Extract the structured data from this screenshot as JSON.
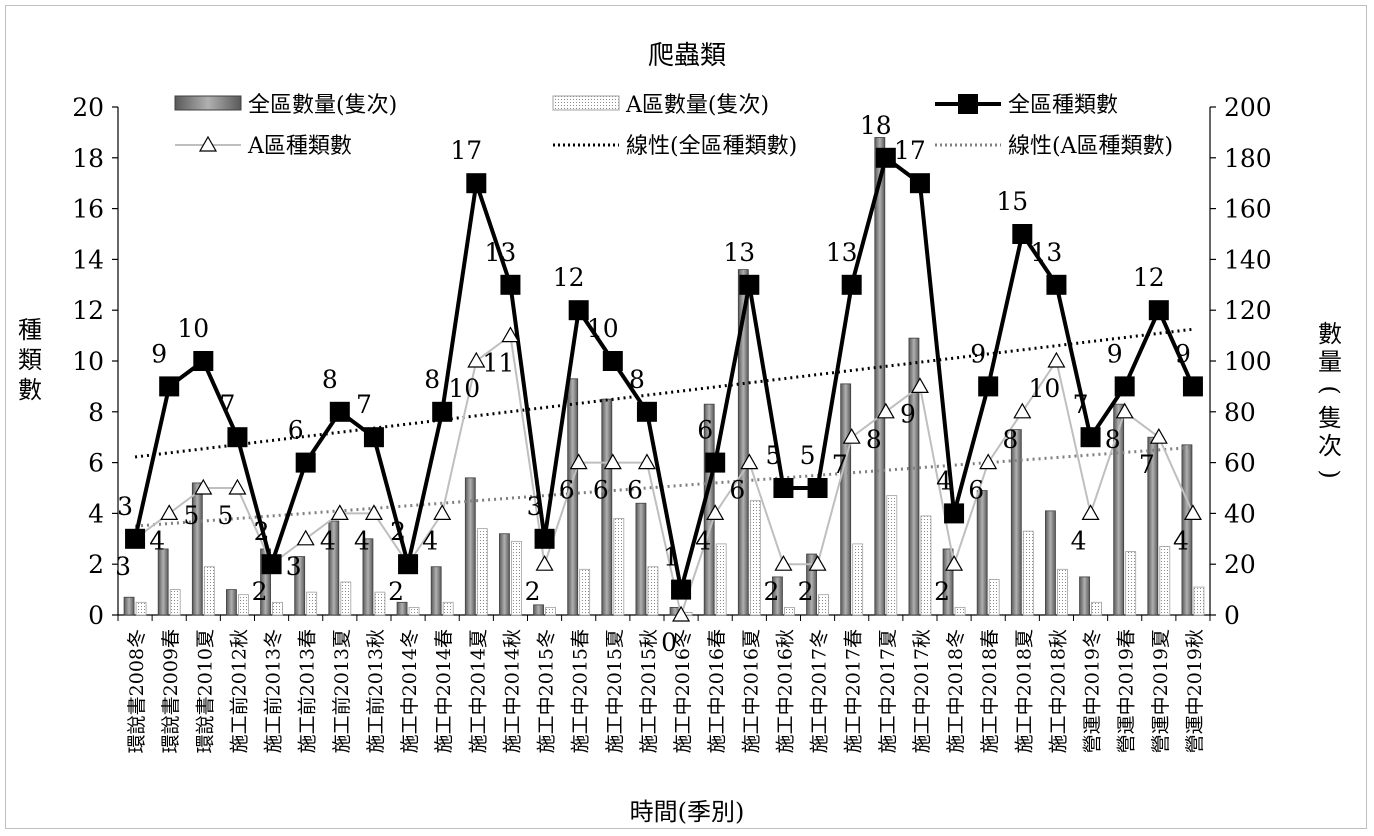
{
  "chart_data": {
    "type": "bar",
    "title": "爬蟲類",
    "xlabel": "時間(季別)",
    "ylabel_left": "種類數",
    "ylabel_right": "數量(隻次)",
    "ylim_left": [
      0,
      20
    ],
    "ylim_right": [
      0,
      200
    ],
    "left_ticks": [
      0,
      2,
      4,
      6,
      8,
      10,
      12,
      14,
      16,
      18,
      20
    ],
    "right_ticks": [
      0,
      20,
      40,
      60,
      80,
      100,
      120,
      140,
      160,
      180,
      200
    ],
    "grid": false,
    "legend_position": "top",
    "categories": [
      "環說書2008冬",
      "環說書2009春",
      "環說書2010夏",
      "施工前2012秋",
      "施工前2013冬",
      "施工前2013春",
      "施工前2013夏",
      "施工前2013秋",
      "施工中2014冬",
      "施工中2014春",
      "施工中2014夏",
      "施工中2014秋",
      "施工中2015冬",
      "施工中2015春",
      "施工中2015夏",
      "施工中2015秋",
      "施工中2016冬",
      "施工中2016春",
      "施工中2016夏",
      "施工中2016秋",
      "施工中2017冬",
      "施工中2017春",
      "施工中2017夏",
      "施工中2017秋",
      "施工中2018冬",
      "施工中2018春",
      "施工中2018夏",
      "施工中2018秋",
      "營運中2019冬",
      "營運中2019春",
      "營運中2019夏",
      "營運中2019秋"
    ],
    "series": [
      {
        "name": "全區數量(隻次)",
        "kind": "bar",
        "axis": "right",
        "color": "#808080",
        "values": [
          7,
          26,
          52,
          10,
          26,
          23,
          37,
          30,
          5,
          19,
          54,
          32,
          4,
          93,
          85,
          44,
          3,
          83,
          136,
          15,
          24,
          91,
          188,
          109,
          26,
          49,
          73,
          41,
          15,
          83,
          70,
          67
        ]
      },
      {
        "name": "A區數量(隻次)",
        "kind": "bar",
        "axis": "right",
        "color": "#ffffff",
        "values": [
          5,
          10,
          19,
          8,
          5,
          9,
          13,
          9,
          3,
          5,
          34,
          29,
          3,
          18,
          38,
          19,
          1,
          28,
          45,
          3,
          8,
          28,
          47,
          39,
          3,
          14,
          33,
          18,
          5,
          25,
          27,
          11
        ]
      },
      {
        "name": "全區種類數",
        "kind": "line",
        "axis": "left",
        "color": "#000000",
        "values": [
          3,
          9,
          10,
          7,
          2,
          6,
          8,
          7,
          2,
          8,
          17,
          13,
          3,
          12,
          10,
          8,
          1,
          6,
          13,
          5,
          5,
          13,
          18,
          17,
          4,
          9,
          15,
          13,
          7,
          9,
          12,
          9
        ]
      },
      {
        "name": "A區種類數",
        "kind": "line",
        "axis": "left",
        "color": "#bfbfbf",
        "values": [
          3,
          4,
          5,
          5,
          2,
          3,
          4,
          4,
          2,
          4,
          10,
          11,
          2,
          6,
          6,
          6,
          0,
          4,
          6,
          2,
          2,
          7,
          8,
          9,
          2,
          6,
          8,
          10,
          4,
          8,
          7,
          4
        ]
      }
    ],
    "trendlines": [
      {
        "name": "線性(全區種類數)",
        "color": "#000000",
        "start": 6.22,
        "end": 11.25
      },
      {
        "name": "線性(A區種類數)",
        "color": "#808080",
        "start": 3.5,
        "end": 6.6
      }
    ]
  }
}
